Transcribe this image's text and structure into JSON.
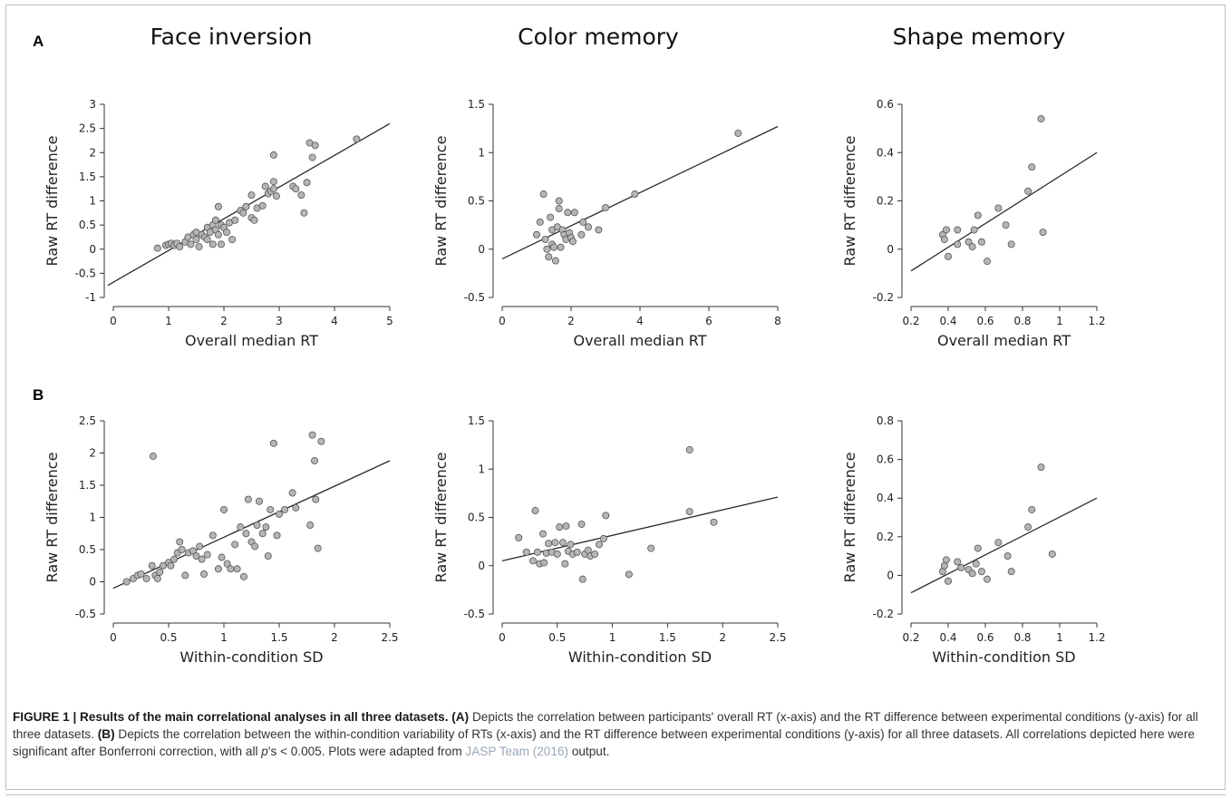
{
  "panel_labels": {
    "a": "A",
    "b": "B"
  },
  "column_titles": [
    "Face inversion",
    "Color memory",
    "Shape memory"
  ],
  "point_color": "#b5b5b5",
  "line_color": "#2a2a2a",
  "chart_data": [
    {
      "id": "A1",
      "type": "scatter",
      "title": "Face inversion",
      "xlabel": "Overall median RT",
      "ylabel": "Raw RT difference",
      "xlim": [
        0,
        5
      ],
      "ylim": [
        -1,
        3
      ],
      "xticks": [
        0,
        1,
        2,
        3,
        4,
        5
      ],
      "yticks": [
        -1,
        -0.5,
        0,
        0.5,
        1,
        1.5,
        2,
        2.5,
        3
      ],
      "fit": [
        [
          -0.1,
          -0.75
        ],
        [
          5,
          2.6
        ]
      ],
      "points": [
        [
          0.8,
          0.02
        ],
        [
          0.95,
          0.08
        ],
        [
          1.0,
          0.1
        ],
        [
          1.05,
          0.12
        ],
        [
          1.1,
          0.08
        ],
        [
          1.15,
          0.12
        ],
        [
          1.2,
          0.05
        ],
        [
          1.3,
          0.15
        ],
        [
          1.35,
          0.25
        ],
        [
          1.4,
          0.1
        ],
        [
          1.45,
          0.3
        ],
        [
          1.5,
          0.2
        ],
        [
          1.5,
          0.35
        ],
        [
          1.55,
          0.05
        ],
        [
          1.6,
          0.3
        ],
        [
          1.65,
          0.25
        ],
        [
          1.7,
          0.45
        ],
        [
          1.7,
          0.2
        ],
        [
          1.75,
          0.35
        ],
        [
          1.8,
          0.5
        ],
        [
          1.8,
          0.1
        ],
        [
          1.85,
          0.6
        ],
        [
          1.85,
          0.4
        ],
        [
          1.9,
          0.3
        ],
        [
          1.9,
          0.88
        ],
        [
          1.95,
          0.5
        ],
        [
          1.95,
          0.1
        ],
        [
          2.0,
          0.45
        ],
        [
          2.05,
          0.35
        ],
        [
          2.1,
          0.55
        ],
        [
          2.15,
          0.2
        ],
        [
          2.2,
          0.6
        ],
        [
          2.3,
          0.8
        ],
        [
          2.35,
          0.75
        ],
        [
          2.4,
          0.88
        ],
        [
          2.5,
          0.65
        ],
        [
          2.5,
          1.12
        ],
        [
          2.55,
          0.6
        ],
        [
          2.6,
          0.85
        ],
        [
          2.7,
          0.9
        ],
        [
          2.75,
          1.3
        ],
        [
          2.8,
          1.15
        ],
        [
          2.85,
          1.2
        ],
        [
          2.9,
          1.25
        ],
        [
          2.9,
          1.4
        ],
        [
          2.9,
          1.95
        ],
        [
          2.95,
          1.1
        ],
        [
          3.25,
          1.3
        ],
        [
          3.3,
          1.25
        ],
        [
          3.4,
          1.12
        ],
        [
          3.45,
          0.75
        ],
        [
          3.5,
          1.38
        ],
        [
          3.55,
          2.2
        ],
        [
          3.6,
          1.9
        ],
        [
          3.65,
          2.15
        ],
        [
          4.4,
          2.28
        ]
      ]
    },
    {
      "id": "A2",
      "type": "scatter",
      "title": "Color memory",
      "xlabel": "Overall median RT",
      "ylabel": "Raw RT difference",
      "xlim": [
        0,
        8
      ],
      "ylim": [
        -0.5,
        1.5
      ],
      "xticks": [
        0,
        2,
        4,
        6,
        8
      ],
      "yticks": [
        -0.5,
        0,
        0.5,
        1,
        1.5
      ],
      "fit": [
        [
          0,
          -0.1
        ],
        [
          8,
          1.27
        ]
      ],
      "points": [
        [
          1.0,
          0.15
        ],
        [
          1.1,
          0.28
        ],
        [
          1.2,
          0.57
        ],
        [
          1.25,
          0.1
        ],
        [
          1.3,
          0.0
        ],
        [
          1.35,
          -0.08
        ],
        [
          1.4,
          0.33
        ],
        [
          1.45,
          0.2
        ],
        [
          1.45,
          0.05
        ],
        [
          1.5,
          0.02
        ],
        [
          1.55,
          -0.12
        ],
        [
          1.6,
          0.23
        ],
        [
          1.65,
          0.5
        ],
        [
          1.65,
          0.42
        ],
        [
          1.7,
          0.02
        ],
        [
          1.75,
          0.2
        ],
        [
          1.8,
          0.15
        ],
        [
          1.85,
          0.1
        ],
        [
          1.9,
          0.38
        ],
        [
          1.95,
          0.17
        ],
        [
          2.0,
          0.12
        ],
        [
          2.05,
          0.08
        ],
        [
          2.1,
          0.38
        ],
        [
          2.3,
          0.15
        ],
        [
          2.35,
          0.28
        ],
        [
          2.5,
          0.23
        ],
        [
          2.8,
          0.2
        ],
        [
          3.0,
          0.43
        ],
        [
          3.85,
          0.57
        ],
        [
          6.85,
          1.2
        ]
      ]
    },
    {
      "id": "A3",
      "type": "scatter",
      "title": "Shape memory",
      "xlabel": "Overall median RT",
      "ylabel": "Raw RT difference",
      "xlim": [
        0.2,
        1.2
      ],
      "ylim": [
        -0.2,
        0.6
      ],
      "xticks": [
        0.2,
        0.4,
        0.6,
        0.8,
        1,
        1.2
      ],
      "yticks": [
        -0.2,
        0,
        0.2,
        0.4,
        0.6
      ],
      "fit": [
        [
          0.2,
          -0.09
        ],
        [
          1.2,
          0.4
        ]
      ],
      "points": [
        [
          0.37,
          0.06
        ],
        [
          0.38,
          0.04
        ],
        [
          0.39,
          0.08
        ],
        [
          0.4,
          -0.03
        ],
        [
          0.45,
          0.08
        ],
        [
          0.45,
          0.02
        ],
        [
          0.51,
          0.03
        ],
        [
          0.53,
          0.01
        ],
        [
          0.54,
          0.08
        ],
        [
          0.56,
          0.14
        ],
        [
          0.58,
          0.03
        ],
        [
          0.61,
          -0.05
        ],
        [
          0.67,
          0.17
        ],
        [
          0.71,
          0.1
        ],
        [
          0.74,
          0.02
        ],
        [
          0.83,
          0.24
        ],
        [
          0.85,
          0.34
        ],
        [
          0.9,
          0.54
        ],
        [
          0.91,
          0.07
        ]
      ]
    },
    {
      "id": "B1",
      "type": "scatter",
      "title": "Face inversion",
      "xlabel": "Within-condition SD",
      "ylabel": "Raw RT difference",
      "xlim": [
        0,
        2.5
      ],
      "ylim": [
        -0.5,
        2.5
      ],
      "xticks": [
        0,
        0.5,
        1,
        1.5,
        2,
        2.5
      ],
      "yticks": [
        -0.5,
        0,
        0.5,
        1,
        1.5,
        2,
        2.5
      ],
      "fit": [
        [
          0,
          -0.1
        ],
        [
          2.5,
          1.88
        ]
      ],
      "points": [
        [
          0.12,
          0.0
        ],
        [
          0.18,
          0.05
        ],
        [
          0.22,
          0.1
        ],
        [
          0.25,
          0.12
        ],
        [
          0.3,
          0.05
        ],
        [
          0.35,
          0.25
        ],
        [
          0.36,
          1.95
        ],
        [
          0.38,
          0.1
        ],
        [
          0.4,
          0.05
        ],
        [
          0.42,
          0.15
        ],
        [
          0.45,
          0.25
        ],
        [
          0.5,
          0.3
        ],
        [
          0.52,
          0.25
        ],
        [
          0.55,
          0.35
        ],
        [
          0.58,
          0.45
        ],
        [
          0.6,
          0.62
        ],
        [
          0.62,
          0.5
        ],
        [
          0.65,
          0.1
        ],
        [
          0.68,
          0.45
        ],
        [
          0.72,
          0.48
        ],
        [
          0.75,
          0.4
        ],
        [
          0.78,
          0.55
        ],
        [
          0.8,
          0.35
        ],
        [
          0.82,
          0.12
        ],
        [
          0.85,
          0.42
        ],
        [
          0.9,
          0.72
        ],
        [
          0.95,
          0.2
        ],
        [
          0.98,
          0.38
        ],
        [
          1.0,
          1.12
        ],
        [
          1.03,
          0.28
        ],
        [
          1.06,
          0.2
        ],
        [
          1.1,
          0.58
        ],
        [
          1.12,
          0.2
        ],
        [
          1.15,
          0.85
        ],
        [
          1.18,
          0.08
        ],
        [
          1.2,
          0.75
        ],
        [
          1.22,
          1.28
        ],
        [
          1.25,
          0.62
        ],
        [
          1.28,
          0.55
        ],
        [
          1.3,
          0.88
        ],
        [
          1.32,
          1.25
        ],
        [
          1.35,
          0.75
        ],
        [
          1.38,
          0.85
        ],
        [
          1.4,
          0.4
        ],
        [
          1.42,
          1.12
        ],
        [
          1.45,
          2.15
        ],
        [
          1.48,
          0.72
        ],
        [
          1.5,
          1.05
        ],
        [
          1.55,
          1.12
        ],
        [
          1.62,
          1.38
        ],
        [
          1.65,
          1.15
        ],
        [
          1.78,
          0.88
        ],
        [
          1.8,
          2.28
        ],
        [
          1.82,
          1.88
        ],
        [
          1.83,
          1.28
        ],
        [
          1.85,
          0.52
        ],
        [
          1.88,
          2.18
        ]
      ]
    },
    {
      "id": "B2",
      "type": "scatter",
      "title": "Color memory",
      "xlabel": "Within-condition SD",
      "ylabel": "Raw RT difference",
      "xlim": [
        0,
        2.5
      ],
      "ylim": [
        -0.5,
        1.5
      ],
      "xticks": [
        0,
        0.5,
        1,
        1.5,
        2,
        2.5
      ],
      "yticks": [
        -0.5,
        0,
        0.5,
        1,
        1.5
      ],
      "fit": [
        [
          0,
          0.05
        ],
        [
          2.5,
          0.71
        ]
      ],
      "points": [
        [
          0.15,
          0.29
        ],
        [
          0.22,
          0.14
        ],
        [
          0.28,
          0.05
        ],
        [
          0.3,
          0.57
        ],
        [
          0.32,
          0.14
        ],
        [
          0.34,
          0.02
        ],
        [
          0.37,
          0.33
        ],
        [
          0.38,
          0.03
        ],
        [
          0.4,
          0.13
        ],
        [
          0.42,
          0.23
        ],
        [
          0.45,
          0.14
        ],
        [
          0.48,
          0.24
        ],
        [
          0.5,
          0.12
        ],
        [
          0.52,
          0.4
        ],
        [
          0.55,
          0.24
        ],
        [
          0.57,
          0.02
        ],
        [
          0.58,
          0.41
        ],
        [
          0.6,
          0.15
        ],
        [
          0.62,
          0.22
        ],
        [
          0.64,
          0.12
        ],
        [
          0.68,
          0.14
        ],
        [
          0.72,
          0.43
        ],
        [
          0.73,
          -0.14
        ],
        [
          0.75,
          0.12
        ],
        [
          0.78,
          0.16
        ],
        [
          0.8,
          0.1
        ],
        [
          0.84,
          0.12
        ],
        [
          0.88,
          0.22
        ],
        [
          0.92,
          0.28
        ],
        [
          0.94,
          0.52
        ],
        [
          1.15,
          -0.09
        ],
        [
          1.35,
          0.18
        ],
        [
          1.7,
          0.56
        ],
        [
          1.7,
          1.2
        ],
        [
          1.92,
          0.45
        ]
      ]
    },
    {
      "id": "B3",
      "type": "scatter",
      "title": "Shape memory",
      "xlabel": "Within-condition SD",
      "ylabel": "Raw RT difference",
      "xlim": [
        0.2,
        1.2
      ],
      "ylim": [
        -0.2,
        0.8
      ],
      "xticks": [
        0.2,
        0.4,
        0.6,
        0.8,
        1,
        1.2
      ],
      "yticks": [
        -0.2,
        0,
        0.2,
        0.4,
        0.6,
        0.8
      ],
      "fit": [
        [
          0.2,
          -0.09
        ],
        [
          1.2,
          0.4
        ]
      ],
      "points": [
        [
          0.37,
          0.02
        ],
        [
          0.38,
          0.05
        ],
        [
          0.39,
          0.08
        ],
        [
          0.4,
          -0.03
        ],
        [
          0.45,
          0.07
        ],
        [
          0.47,
          0.04
        ],
        [
          0.51,
          0.03
        ],
        [
          0.53,
          0.01
        ],
        [
          0.55,
          0.06
        ],
        [
          0.56,
          0.14
        ],
        [
          0.58,
          0.02
        ],
        [
          0.61,
          -0.02
        ],
        [
          0.67,
          0.17
        ],
        [
          0.72,
          0.1
        ],
        [
          0.74,
          0.02
        ],
        [
          0.83,
          0.25
        ],
        [
          0.85,
          0.34
        ],
        [
          0.9,
          0.56
        ],
        [
          0.96,
          0.11
        ]
      ]
    }
  ],
  "caption": {
    "label": "FIGURE 1 | Results of the main correlational analyses in all three datasets.",
    "a_tag": "(A)",
    "a_text": "Depicts the correlation between participants' overall RT (x-axis) and the RT difference between experimental conditions (y-axis) for all three datasets.",
    "b_tag": "(B)",
    "b_text": "Depicts the correlation between the within-condition variability of RTs (x-axis) and the RT difference between experimental conditions (y-axis) for all three datasets. All correlations depicted here were significant after Bonferroni correction, with all",
    "p_text": "p",
    "p_rest": "'s < 0.005. Plots were adapted from",
    "ref": "JASP Team (2016)",
    "end": "output."
  }
}
